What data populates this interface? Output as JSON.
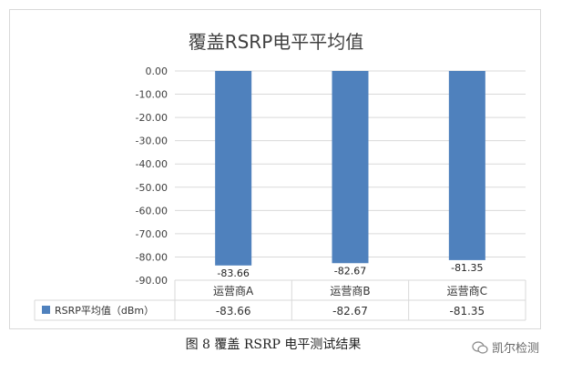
{
  "chart_data": {
    "type": "bar",
    "title": "覆盖RSRP电平平均值",
    "categories": [
      "运营商A",
      "运营商B",
      "运营商C"
    ],
    "series": [
      {
        "name": "RSRP平均值（dBm）",
        "values": [
          -83.66,
          -82.67,
          -81.35
        ],
        "color": "#4f81bd"
      }
    ],
    "value_labels": [
      "-83.66",
      "-82.67",
      "-81.35"
    ],
    "yticks": [
      "0.00",
      "-10.00",
      "-20.00",
      "-30.00",
      "-40.00",
      "-50.00",
      "-60.00",
      "-70.00",
      "-80.00",
      "-90.00"
    ],
    "ylim": [
      -90,
      0
    ],
    "grid": true,
    "legend_position": "data-table"
  },
  "caption": "图 8  覆盖 RSRP 电平测试结果",
  "watermark": "凯尔检测",
  "colors": {
    "bar": "#4f81bd",
    "grid": "#d9d9d9",
    "text": "#404040"
  }
}
